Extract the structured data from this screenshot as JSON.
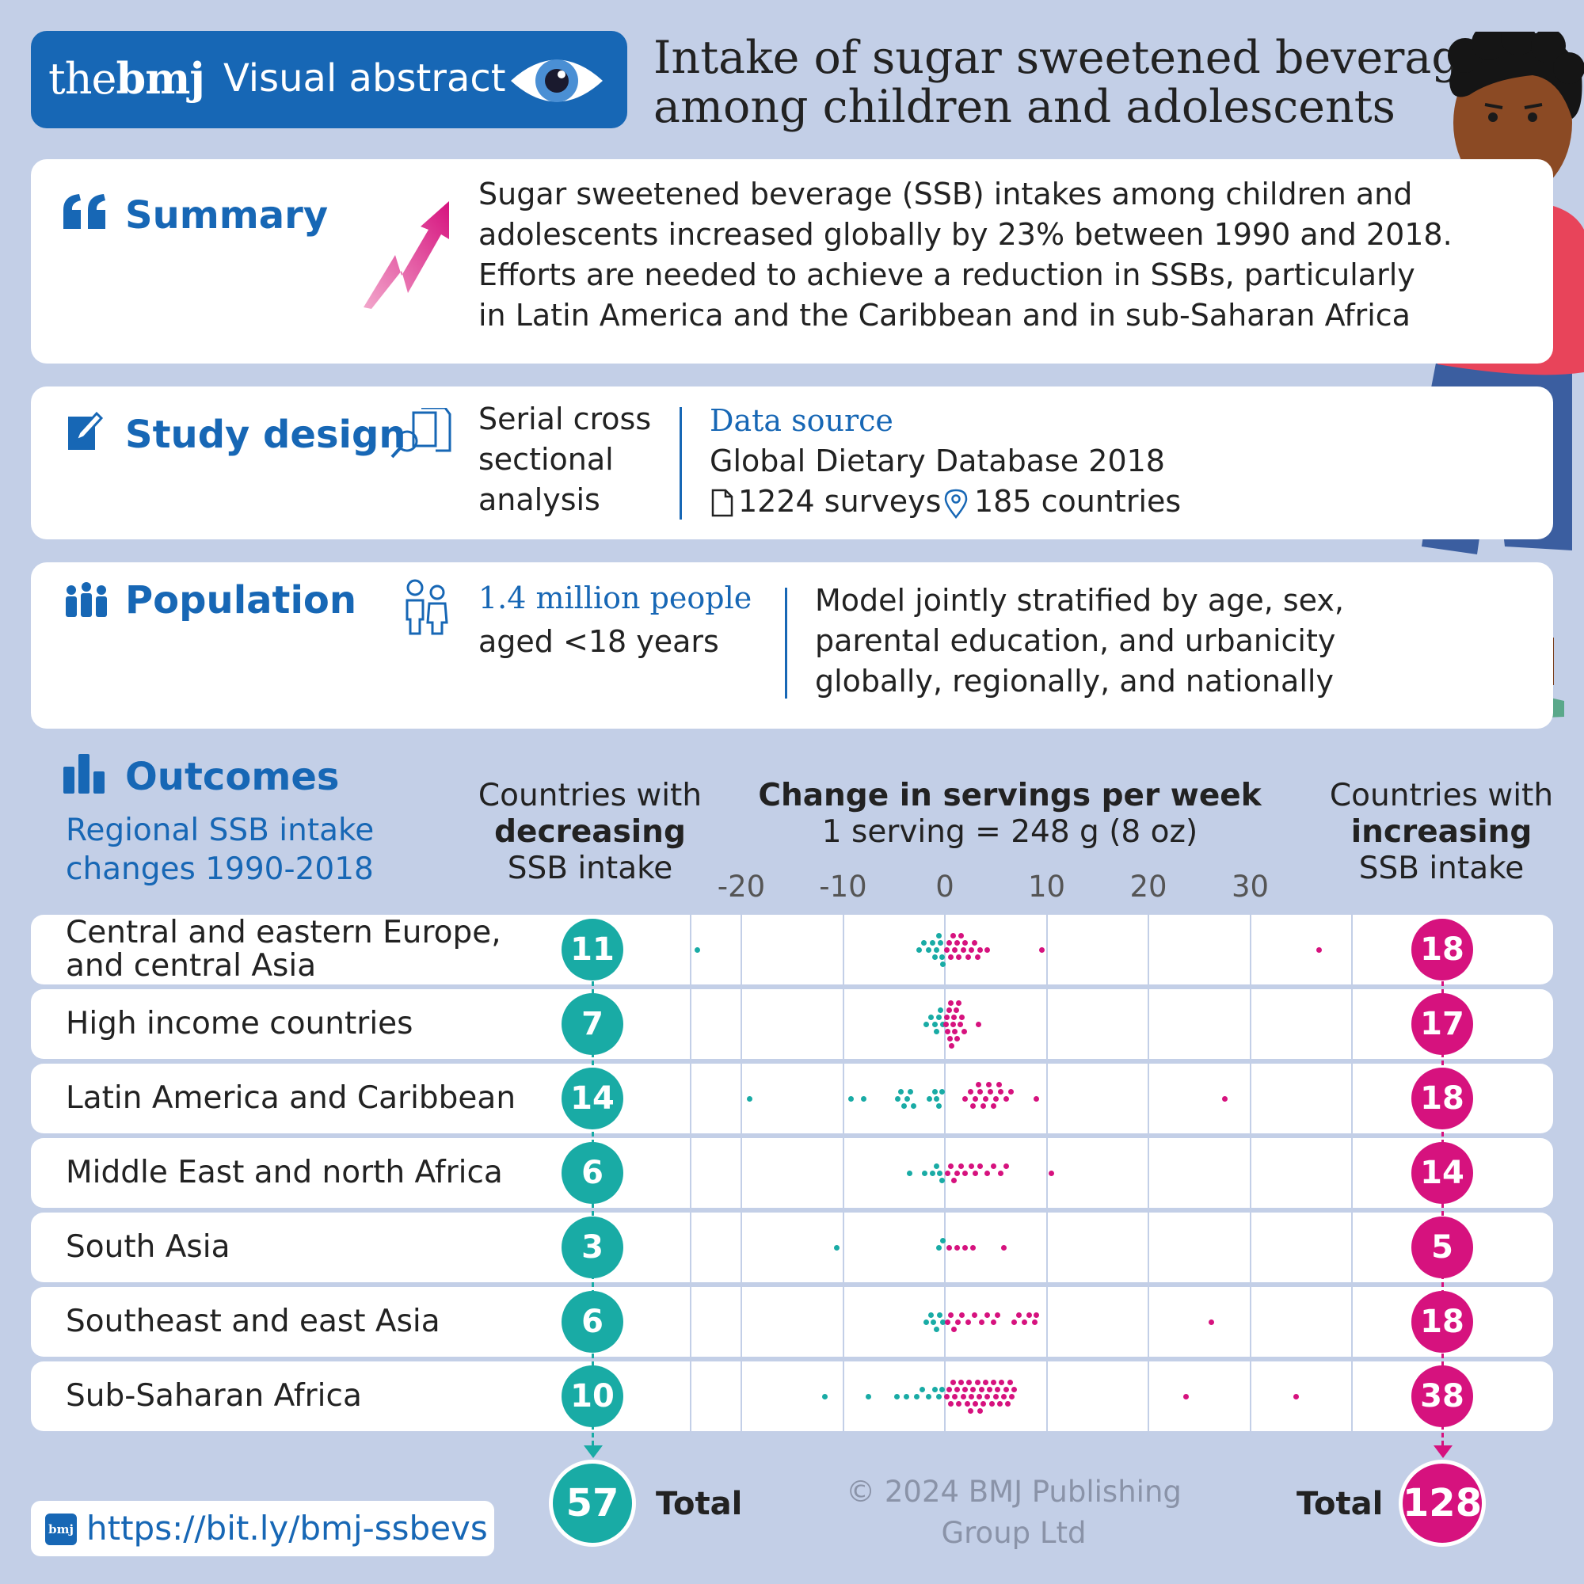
{
  "brand": {
    "logo_the": "the",
    "logo_bmj": "bmj",
    "label": "Visual abstract"
  },
  "title": [
    "Intake of sugar sweetened beverages",
    "among children and adolescents"
  ],
  "summary": {
    "heading": "Summary",
    "lines": [
      "Sugar sweetened beverage (SSB) intakes among children and",
      "adolescents increased globally by 23% between 1990 and 2018.",
      "Efforts are needed to achieve a reduction in SSBs, particularly",
      "in Latin America and the Caribbean and in sub-Saharan Africa"
    ]
  },
  "study_design": {
    "heading": "Study design",
    "design_lines": [
      "Serial cross",
      "sectional",
      "analysis"
    ],
    "data_source_label": "Data source",
    "database": "Global Dietary Database 2018",
    "surveys": "1224 surveys",
    "countries": "185 countries"
  },
  "population": {
    "heading": "Population",
    "people": "1.4 million people",
    "aged": "aged <18 years",
    "model_lines": [
      "Model jointly stratified by age, sex,",
      "parental education, and urbanicity",
      "globally, regionally, and nationally"
    ]
  },
  "outcomes": {
    "heading": "Outcomes",
    "subtitle_lines": [
      "Regional SSB intake",
      "changes 1990-2018"
    ],
    "dec_head": [
      "Countries with",
      "decreasing",
      "SSB intake"
    ],
    "chart_head": [
      "Change in servings per week",
      "1 serving = 248 g (8 oz)"
    ],
    "inc_head": [
      "Countries with",
      "increasing",
      "SSB intake"
    ],
    "total_label": "Total",
    "total_decreasing": "57",
    "total_increasing": "128"
  },
  "footer": {
    "badge": "bmj",
    "url": "https://bit.ly/bmj-ssbevs",
    "copyright_lines": [
      "© 2024 BMJ Publishing",
      "Group Ltd"
    ]
  },
  "colors": {
    "brand_blue": "#1767b5",
    "teal": "#19aba5",
    "pink": "#d6127e",
    "background": "#c3cfe7"
  },
  "chart_data": {
    "type": "scatter",
    "title": "Change in servings per week",
    "subtitle": "1 serving = 248 g (8 oz)",
    "xlabel": "",
    "x_ticks": [
      -20,
      -10,
      0,
      10,
      20,
      30
    ],
    "xlim": [
      -25,
      40
    ],
    "regions": [
      {
        "name": "Central and eastern Europe, and central Asia",
        "decreasing": 11,
        "increasing": 18,
        "dec_values": [
          -24.3,
          -2.5,
          -2.1,
          -1.6,
          -1.2,
          -1.0,
          -0.8,
          -0.6,
          -0.4,
          -0.3,
          -0.2
        ],
        "inc_values": [
          0.2,
          0.4,
          0.6,
          0.8,
          1.0,
          1.2,
          1.4,
          1.6,
          1.8,
          2.0,
          2.3,
          2.6,
          2.9,
          3.2,
          3.5,
          4.2,
          9.5,
          36.8
        ]
      },
      {
        "name": "High income countries",
        "decreasing": 7,
        "increasing": 17,
        "dec_values": [
          -1.8,
          -1.4,
          -1.0,
          -0.8,
          -0.6,
          -0.4,
          -0.2
        ],
        "inc_values": [
          0.1,
          0.2,
          0.3,
          0.4,
          0.5,
          0.6,
          0.7,
          0.8,
          0.9,
          1.0,
          1.1,
          1.2,
          1.4,
          1.5,
          1.7,
          1.9,
          3.3
        ]
      },
      {
        "name": "Latin America and Caribbean",
        "decreasing": 14,
        "increasing": 18,
        "dec_values": [
          -19.2,
          -9.2,
          -8.0,
          -4.6,
          -4.3,
          -4.0,
          -3.7,
          -3.4,
          -3.1,
          -1.5,
          -1.0,
          -0.8,
          -0.6,
          -0.3
        ],
        "inc_values": [
          2.0,
          2.5,
          3.0,
          3.5,
          4.0,
          4.5,
          5.0,
          5.5,
          6.0,
          2.8,
          3.8,
          4.8,
          5.3,
          3.3,
          4.3,
          6.5,
          9.0,
          27.5
        ]
      },
      {
        "name": "Middle East and north Africa",
        "decreasing": 6,
        "increasing": 14,
        "dec_values": [
          -3.5,
          -2.0,
          -1.2,
          -0.8,
          -0.5,
          -0.3
        ],
        "inc_values": [
          0.3,
          0.6,
          0.9,
          1.2,
          1.6,
          2.0,
          2.6,
          3.0,
          3.5,
          4.2,
          4.8,
          5.5,
          6.0,
          10.5
        ]
      },
      {
        "name": "South Asia",
        "decreasing": 3,
        "increasing": 5,
        "dec_values": [
          -10.6,
          -0.6,
          -0.2
        ],
        "inc_values": [
          0.4,
          1.2,
          2.0,
          2.8,
          5.8
        ]
      },
      {
        "name": "Southeast and east Asia",
        "decreasing": 6,
        "increasing": 18,
        "dec_values": [
          -1.8,
          -1.4,
          -1.1,
          -0.8,
          -0.5,
          -0.2
        ],
        "inc_values": [
          0.3,
          0.6,
          0.9,
          1.3,
          1.7,
          2.3,
          2.9,
          3.6,
          4.2,
          4.8,
          5.2,
          6.8,
          7.3,
          7.8,
          8.3,
          8.8,
          9.0,
          26.2
        ]
      },
      {
        "name": "Sub-Saharan Africa",
        "decreasing": 10,
        "increasing": 38,
        "dec_values": [
          -11.8,
          -7.5,
          -4.7,
          -3.8,
          -2.8,
          -2.2,
          -1.6,
          -1.0,
          -0.6,
          -0.3
        ],
        "inc_values": [
          0.2,
          0.4,
          0.6,
          0.8,
          1.0,
          1.2,
          1.4,
          1.6,
          1.8,
          2.0,
          2.2,
          2.4,
          2.6,
          2.8,
          3.0,
          3.2,
          3.4,
          3.6,
          3.8,
          4.0,
          4.2,
          4.4,
          4.6,
          4.8,
          5.0,
          5.2,
          5.4,
          5.6,
          5.8,
          6.0,
          6.2,
          6.4,
          6.6,
          6.8,
          2.5,
          3.5,
          23.7,
          34.5
        ]
      }
    ]
  }
}
